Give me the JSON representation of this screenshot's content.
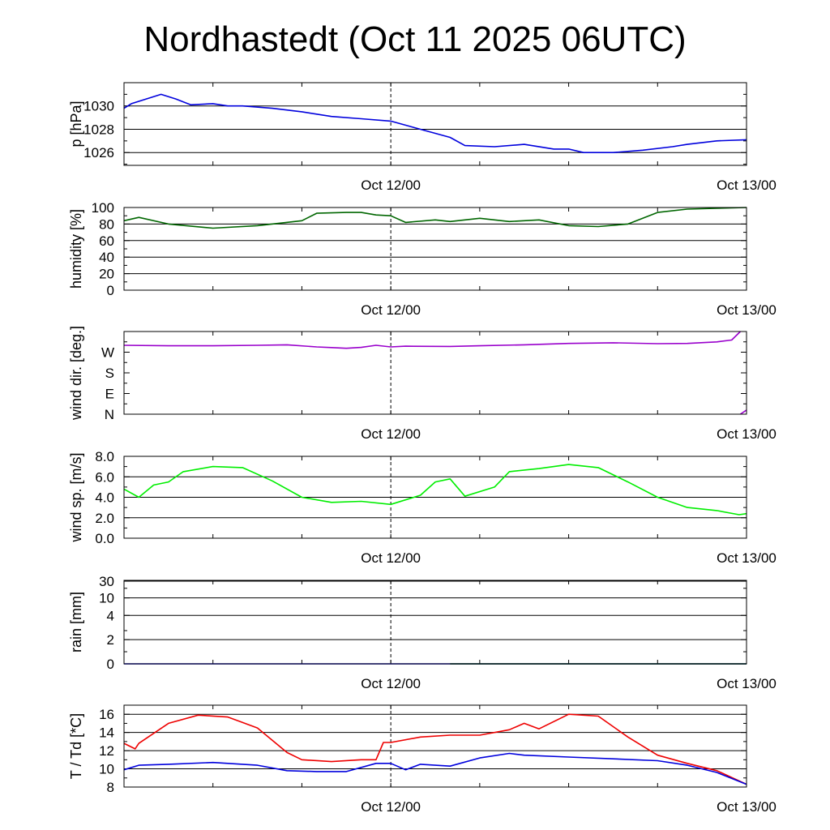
{
  "title": "Nordhastedt (Oct 11 2025 06UTC)",
  "time_axis": {
    "start": "2025-10-11T06:00Z",
    "end": "2025-10-13T00:00Z",
    "ticks": [
      {
        "time": "2025-10-12T00:00Z",
        "label": "Oct 12/00"
      },
      {
        "time": "2025-10-13T00:00Z",
        "label": "Oct 13/00"
      }
    ],
    "marker": "2025-10-12T00:00Z"
  },
  "chart_data": [
    {
      "type": "line",
      "ylabel": "p [hPa]",
      "ylim": [
        1024.9,
        1032
      ],
      "yticks": [
        {
          "v": 1026,
          "label": "1026"
        },
        {
          "v": 1028,
          "label": "1028"
        },
        {
          "v": 1030,
          "label": "1030"
        }
      ],
      "minor_ticks": [
        1025,
        1027,
        1029,
        1031
      ],
      "grid": true,
      "series": [
        {
          "color": "#0000dd",
          "x": [
            "2025-10-11T06:00Z",
            "2025-10-11T06:30Z",
            "2025-10-11T07:30Z",
            "2025-10-11T08:30Z",
            "2025-10-11T09:30Z",
            "2025-10-11T10:30Z",
            "2025-10-11T12:00Z",
            "2025-10-11T13:00Z",
            "2025-10-11T14:00Z",
            "2025-10-11T16:00Z",
            "2025-10-11T18:00Z",
            "2025-10-11T20:00Z",
            "2025-10-11T22:00Z",
            "2025-10-12T00:00Z",
            "2025-10-12T02:00Z",
            "2025-10-12T04:00Z",
            "2025-10-12T05:00Z",
            "2025-10-12T07:00Z",
            "2025-10-12T09:00Z",
            "2025-10-12T11:00Z",
            "2025-10-12T12:00Z",
            "2025-10-12T13:00Z",
            "2025-10-12T15:00Z",
            "2025-10-12T17:00Z",
            "2025-10-12T19:00Z",
            "2025-10-12T20:00Z",
            "2025-10-12T22:00Z",
            "2025-10-13T00:00Z"
          ],
          "y": [
            1029.8,
            1030.2,
            1030.6,
            1031.0,
            1030.6,
            1030.1,
            1030.2,
            1030.0,
            1030.0,
            1029.8,
            1029.5,
            1029.1,
            1028.9,
            1028.7,
            1028.0,
            1027.3,
            1026.6,
            1026.5,
            1026.7,
            1026.3,
            1026.3,
            1026.0,
            1026.0,
            1026.2,
            1026.5,
            1026.7,
            1027.0,
            1027.1
          ]
        }
      ]
    },
    {
      "type": "line",
      "ylabel": "humidity [%]",
      "ylim": [
        0,
        100
      ],
      "yticks": [
        {
          "v": 0,
          "label": "0"
        },
        {
          "v": 20,
          "label": "20"
        },
        {
          "v": 40,
          "label": "40"
        },
        {
          "v": 60,
          "label": "60"
        },
        {
          "v": 80,
          "label": "80"
        },
        {
          "v": 100,
          "label": "100"
        }
      ],
      "minor_ticks": [
        10,
        30,
        50,
        70,
        90
      ],
      "grid": true,
      "series": [
        {
          "color": "#006600",
          "x": [
            "2025-10-11T06:00Z",
            "2025-10-11T07:00Z",
            "2025-10-11T09:00Z",
            "2025-10-11T12:00Z",
            "2025-10-11T15:00Z",
            "2025-10-11T18:00Z",
            "2025-10-11T19:00Z",
            "2025-10-11T21:00Z",
            "2025-10-11T22:00Z",
            "2025-10-11T23:00Z",
            "2025-10-12T00:00Z",
            "2025-10-12T01:00Z",
            "2025-10-12T03:00Z",
            "2025-10-12T04:00Z",
            "2025-10-12T06:00Z",
            "2025-10-12T08:00Z",
            "2025-10-12T10:00Z",
            "2025-10-12T12:00Z",
            "2025-10-12T14:00Z",
            "2025-10-12T16:00Z",
            "2025-10-12T18:00Z",
            "2025-10-12T20:00Z",
            "2025-10-12T22:00Z",
            "2025-10-13T00:00Z"
          ],
          "y": [
            84,
            88,
            80,
            75,
            78,
            84,
            93,
            94,
            94,
            91,
            90,
            82,
            85,
            83,
            87,
            83,
            85,
            78,
            77,
            80,
            94,
            98,
            99,
            100
          ]
        }
      ]
    },
    {
      "type": "line",
      "ylabel": "wind dir. [deg.]",
      "ylim": [
        0,
        360
      ],
      "yticks": [
        {
          "v": 0,
          "label": "N"
        },
        {
          "v": 90,
          "label": "E"
        },
        {
          "v": 180,
          "label": "S"
        },
        {
          "v": 270,
          "label": "W"
        }
      ],
      "minor_ticks": [
        45,
        135,
        225,
        315
      ],
      "grid": false,
      "series": [
        {
          "color": "#9900cc",
          "x": [
            "2025-10-11T06:00Z",
            "2025-10-11T09:00Z",
            "2025-10-11T12:00Z",
            "2025-10-11T15:00Z",
            "2025-10-11T17:00Z",
            "2025-10-11T19:00Z",
            "2025-10-11T20:00Z",
            "2025-10-11T21:00Z",
            "2025-10-11T22:00Z",
            "2025-10-11T23:00Z",
            "2025-10-12T00:00Z",
            "2025-10-12T01:00Z",
            "2025-10-12T04:00Z",
            "2025-10-12T06:00Z",
            "2025-10-12T09:00Z",
            "2025-10-12T12:00Z",
            "2025-10-12T15:00Z",
            "2025-10-12T18:00Z",
            "2025-10-12T20:00Z",
            "2025-10-12T22:00Z",
            "2025-10-12T23:00Z",
            "2025-10-12T23:35Z"
          ],
          "y": [
            300,
            298,
            298,
            300,
            302,
            293,
            290,
            287,
            291,
            300,
            293,
            296,
            295,
            298,
            302,
            308,
            311,
            307,
            308,
            315,
            323,
            360
          ]
        },
        {
          "color": "#9900cc",
          "x": [
            "2025-10-12T23:35Z",
            "2025-10-13T00:00Z"
          ],
          "y": [
            0,
            18
          ]
        }
      ]
    },
    {
      "type": "line",
      "ylabel": "wind sp. [m/s]",
      "ylim": [
        0,
        8
      ],
      "yticks": [
        {
          "v": 0,
          "label": "0.0"
        },
        {
          "v": 2,
          "label": "2.0"
        },
        {
          "v": 4,
          "label": "4.0"
        },
        {
          "v": 6,
          "label": "6.0"
        },
        {
          "v": 8,
          "label": "8.0"
        }
      ],
      "minor_ticks": [
        1,
        3,
        5,
        7
      ],
      "grid": true,
      "series": [
        {
          "color": "#00ee00",
          "x": [
            "2025-10-11T06:00Z",
            "2025-10-11T07:00Z",
            "2025-10-11T08:00Z",
            "2025-10-11T09:00Z",
            "2025-10-11T10:00Z",
            "2025-10-11T12:00Z",
            "2025-10-11T14:00Z",
            "2025-10-11T16:00Z",
            "2025-10-11T18:00Z",
            "2025-10-11T20:00Z",
            "2025-10-11T22:00Z",
            "2025-10-12T00:00Z",
            "2025-10-12T02:00Z",
            "2025-10-12T03:00Z",
            "2025-10-12T04:00Z",
            "2025-10-12T05:00Z",
            "2025-10-12T07:00Z",
            "2025-10-12T08:00Z",
            "2025-10-12T10:00Z",
            "2025-10-12T12:00Z",
            "2025-10-12T14:00Z",
            "2025-10-12T16:00Z",
            "2025-10-12T18:00Z",
            "2025-10-12T20:00Z",
            "2025-10-12T22:00Z",
            "2025-10-12T23:30Z",
            "2025-10-13T00:00Z"
          ],
          "y": [
            4.8,
            4.0,
            5.2,
            5.5,
            6.5,
            7.0,
            6.9,
            5.6,
            4.0,
            3.5,
            3.6,
            3.3,
            4.2,
            5.5,
            5.8,
            4.1,
            5.0,
            6.5,
            6.8,
            7.2,
            6.9,
            5.5,
            4.0,
            3.0,
            2.7,
            2.3,
            2.4
          ]
        }
      ]
    },
    {
      "type": "line",
      "ylabel": "rain [mm]",
      "ylim": [
        0,
        30
      ],
      "yticks": [
        {
          "v": 0,
          "label": "0"
        },
        {
          "v": 2,
          "label": "2"
        },
        {
          "v": 4,
          "label": "4"
        },
        {
          "v": 10,
          "label": "10"
        },
        {
          "v": 30,
          "label": "30"
        }
      ],
      "minor_ticks": [
        1,
        3,
        20
      ],
      "grid": true,
      "series": [
        {
          "color": "#0000dd",
          "x": [
            "2025-10-11T06:00Z",
            "2025-10-13T00:00Z"
          ],
          "y": [
            0,
            0
          ]
        },
        {
          "color": "#006600",
          "x": [
            "2025-10-12T04:00Z",
            "2025-10-13T00:00Z"
          ],
          "y": [
            0,
            0
          ]
        }
      ]
    },
    {
      "type": "line",
      "ylabel": "T / Td [*C]",
      "ylim": [
        8,
        17
      ],
      "yticks": [
        {
          "v": 8,
          "label": "8"
        },
        {
          "v": 10,
          "label": "10"
        },
        {
          "v": 12,
          "label": "12"
        },
        {
          "v": 14,
          "label": "14"
        },
        {
          "v": 16,
          "label": "16"
        }
      ],
      "minor_ticks": [
        9,
        11,
        13,
        15
      ],
      "grid": true,
      "series": [
        {
          "color": "#ee0000",
          "x": [
            "2025-10-11T06:00Z",
            "2025-10-11T06:45Z",
            "2025-10-11T07:00Z",
            "2025-10-11T09:00Z",
            "2025-10-11T11:00Z",
            "2025-10-11T13:00Z",
            "2025-10-11T15:00Z",
            "2025-10-11T17:00Z",
            "2025-10-11T18:00Z",
            "2025-10-11T20:00Z",
            "2025-10-11T22:00Z",
            "2025-10-11T23:00Z",
            "2025-10-11T23:30Z",
            "2025-10-12T00:00Z",
            "2025-10-12T02:00Z",
            "2025-10-12T04:00Z",
            "2025-10-12T06:00Z",
            "2025-10-12T08:00Z",
            "2025-10-12T09:00Z",
            "2025-10-12T10:00Z",
            "2025-10-12T12:00Z",
            "2025-10-12T14:00Z",
            "2025-10-12T16:00Z",
            "2025-10-12T18:00Z",
            "2025-10-12T20:00Z",
            "2025-10-12T22:00Z",
            "2025-10-13T00:00Z"
          ],
          "y": [
            12.8,
            12.2,
            12.8,
            15.0,
            15.9,
            15.7,
            14.5,
            11.8,
            11.0,
            10.8,
            11.0,
            11.0,
            12.9,
            12.9,
            13.5,
            13.7,
            13.7,
            14.3,
            15.0,
            14.4,
            16.0,
            15.8,
            13.5,
            11.5,
            10.6,
            9.8,
            8.3
          ]
        },
        {
          "color": "#0000dd",
          "x": [
            "2025-10-11T06:00Z",
            "2025-10-11T07:00Z",
            "2025-10-11T09:00Z",
            "2025-10-11T12:00Z",
            "2025-10-11T15:00Z",
            "2025-10-11T17:00Z",
            "2025-10-11T19:00Z",
            "2025-10-11T21:00Z",
            "2025-10-11T23:00Z",
            "2025-10-12T00:00Z",
            "2025-10-12T01:00Z",
            "2025-10-12T02:00Z",
            "2025-10-12T04:00Z",
            "2025-10-12T06:00Z",
            "2025-10-12T08:00Z",
            "2025-10-12T09:00Z",
            "2025-10-12T12:00Z",
            "2025-10-12T15:00Z",
            "2025-10-12T18:00Z",
            "2025-10-12T20:00Z",
            "2025-10-12T22:00Z",
            "2025-10-13T00:00Z"
          ],
          "y": [
            9.9,
            10.4,
            10.5,
            10.7,
            10.4,
            9.8,
            9.7,
            9.7,
            10.6,
            10.6,
            9.9,
            10.5,
            10.3,
            11.2,
            11.7,
            11.5,
            11.3,
            11.1,
            10.9,
            10.4,
            9.6,
            8.3
          ]
        }
      ]
    }
  ]
}
